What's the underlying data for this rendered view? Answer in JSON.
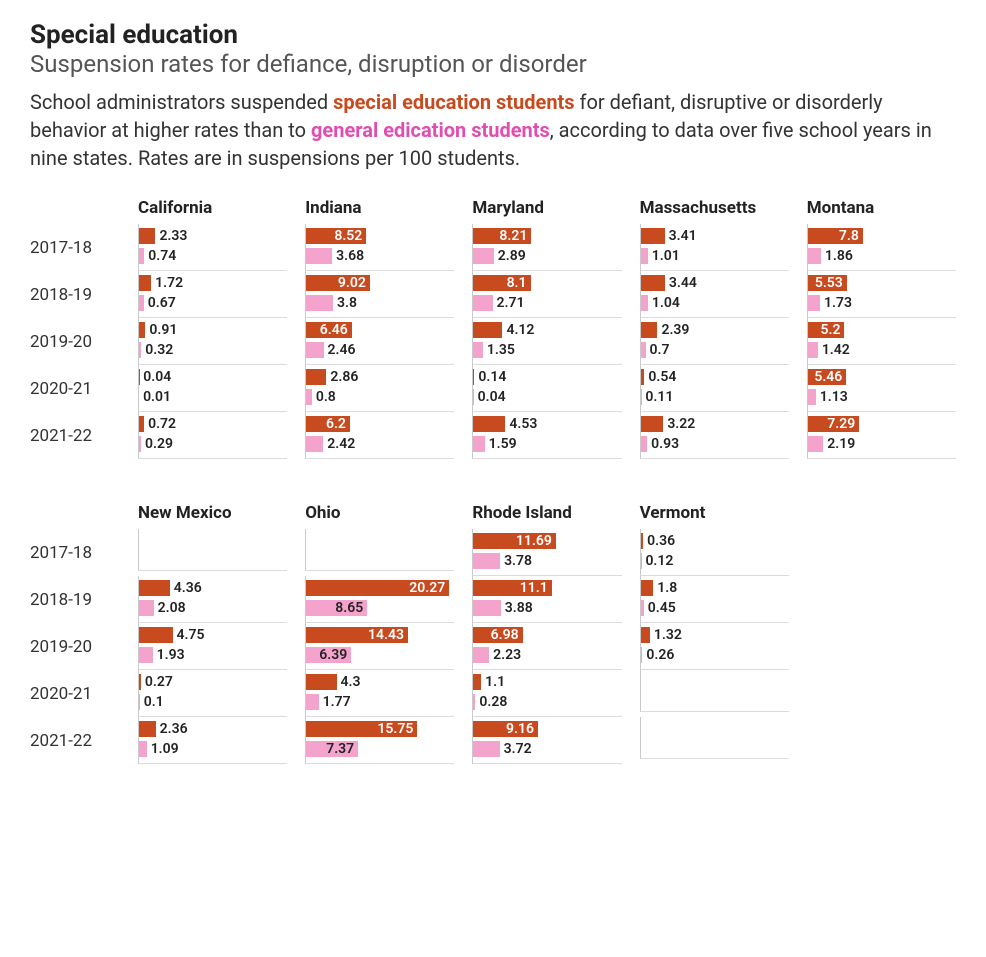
{
  "title": "Special education",
  "subtitle": "Suspension rates for defiance, disruption or disorder",
  "description_parts": {
    "p1": "School administrators suspended ",
    "special": "special education students",
    "p2": " for defiant, disruptive or disorderly behavior at higher rates than to ",
    "general": "general edication students",
    "p3": ", according to data over five school years in nine states. Rates are in suspensions per 100 students."
  },
  "style": {
    "title_fontsize": 26,
    "subtitle_fontsize": 24,
    "subtitle_color": "#555555",
    "description_fontsize": 20,
    "description_color": "#333333",
    "state_header_fontsize": 17,
    "year_label_fontsize": 17,
    "bar_label_fontsize": 14,
    "special_color": "#c84a1f",
    "general_color": "#f4a4cc",
    "special_text_highlight": "#c84a1f",
    "general_text_highlight": "#e04eb0",
    "label_inside_color": "#ffffff",
    "label_outside_color": "#222222",
    "max_value": 21,
    "inside_threshold": 5.0,
    "gen_inside_threshold": 6.0
  },
  "years": [
    "2017-18",
    "2018-19",
    "2019-20",
    "2020-21",
    "2021-22"
  ],
  "group1_states": [
    "California",
    "Indiana",
    "Maryland",
    "Massachusetts",
    "Montana"
  ],
  "group2_states": [
    "New Mexico",
    "Ohio",
    "Rhode Island",
    "Vermont",
    ""
  ],
  "data": {
    "California": {
      "2017-18": {
        "special": 2.33,
        "general": 0.74
      },
      "2018-19": {
        "special": 1.72,
        "general": 0.67
      },
      "2019-20": {
        "special": 0.91,
        "general": 0.32
      },
      "2020-21": {
        "special": 0.04,
        "general": 0.01
      },
      "2021-22": {
        "special": 0.72,
        "general": 0.29
      }
    },
    "Indiana": {
      "2017-18": {
        "special": 8.52,
        "general": 3.68
      },
      "2018-19": {
        "special": 9.02,
        "general": 3.8
      },
      "2019-20": {
        "special": 6.46,
        "general": 2.46
      },
      "2020-21": {
        "special": 2.86,
        "general": 0.8
      },
      "2021-22": {
        "special": 6.2,
        "general": 2.42
      }
    },
    "Maryland": {
      "2017-18": {
        "special": 8.21,
        "general": 2.89
      },
      "2018-19": {
        "special": 8.1,
        "general": 2.71
      },
      "2019-20": {
        "special": 4.12,
        "general": 1.35
      },
      "2020-21": {
        "special": 0.14,
        "general": 0.04
      },
      "2021-22": {
        "special": 4.53,
        "general": 1.59
      }
    },
    "Massachusetts": {
      "2017-18": {
        "special": 3.41,
        "general": 1.01
      },
      "2018-19": {
        "special": 3.44,
        "general": 1.04
      },
      "2019-20": {
        "special": 2.39,
        "general": 0.7
      },
      "2020-21": {
        "special": 0.54,
        "general": 0.11
      },
      "2021-22": {
        "special": 3.22,
        "general": 0.93
      }
    },
    "Montana": {
      "2017-18": {
        "special": 7.8,
        "general": 1.86
      },
      "2018-19": {
        "special": 5.53,
        "general": 1.73
      },
      "2019-20": {
        "special": 5.2,
        "general": 1.42
      },
      "2020-21": {
        "special": 5.46,
        "general": 1.13
      },
      "2021-22": {
        "special": 7.29,
        "general": 2.19
      }
    },
    "New Mexico": {
      "2017-18": null,
      "2018-19": {
        "special": 4.36,
        "general": 2.08
      },
      "2019-20": {
        "special": 4.75,
        "general": 1.93
      },
      "2020-21": {
        "special": 0.27,
        "general": 0.1
      },
      "2021-22": {
        "special": 2.36,
        "general": 1.09
      }
    },
    "Ohio": {
      "2017-18": null,
      "2018-19": {
        "special": 20.27,
        "general": 8.65
      },
      "2019-20": {
        "special": 14.43,
        "general": 6.39
      },
      "2020-21": {
        "special": 4.3,
        "general": 1.77
      },
      "2021-22": {
        "special": 15.75,
        "general": 7.37
      }
    },
    "Rhode Island": {
      "2017-18": {
        "special": 11.69,
        "general": 3.78
      },
      "2018-19": {
        "special": 11.1,
        "general": 3.88
      },
      "2019-20": {
        "special": 6.98,
        "general": 2.23
      },
      "2020-21": {
        "special": 1.1,
        "general": 0.28
      },
      "2021-22": {
        "special": 9.16,
        "general": 3.72
      }
    },
    "Vermont": {
      "2017-18": {
        "special": 0.36,
        "general": 0.12
      },
      "2018-19": {
        "special": 1.8,
        "general": 0.45
      },
      "2019-20": {
        "special": 1.32,
        "general": 0.26
      },
      "2020-21": null,
      "2021-22": null
    }
  }
}
